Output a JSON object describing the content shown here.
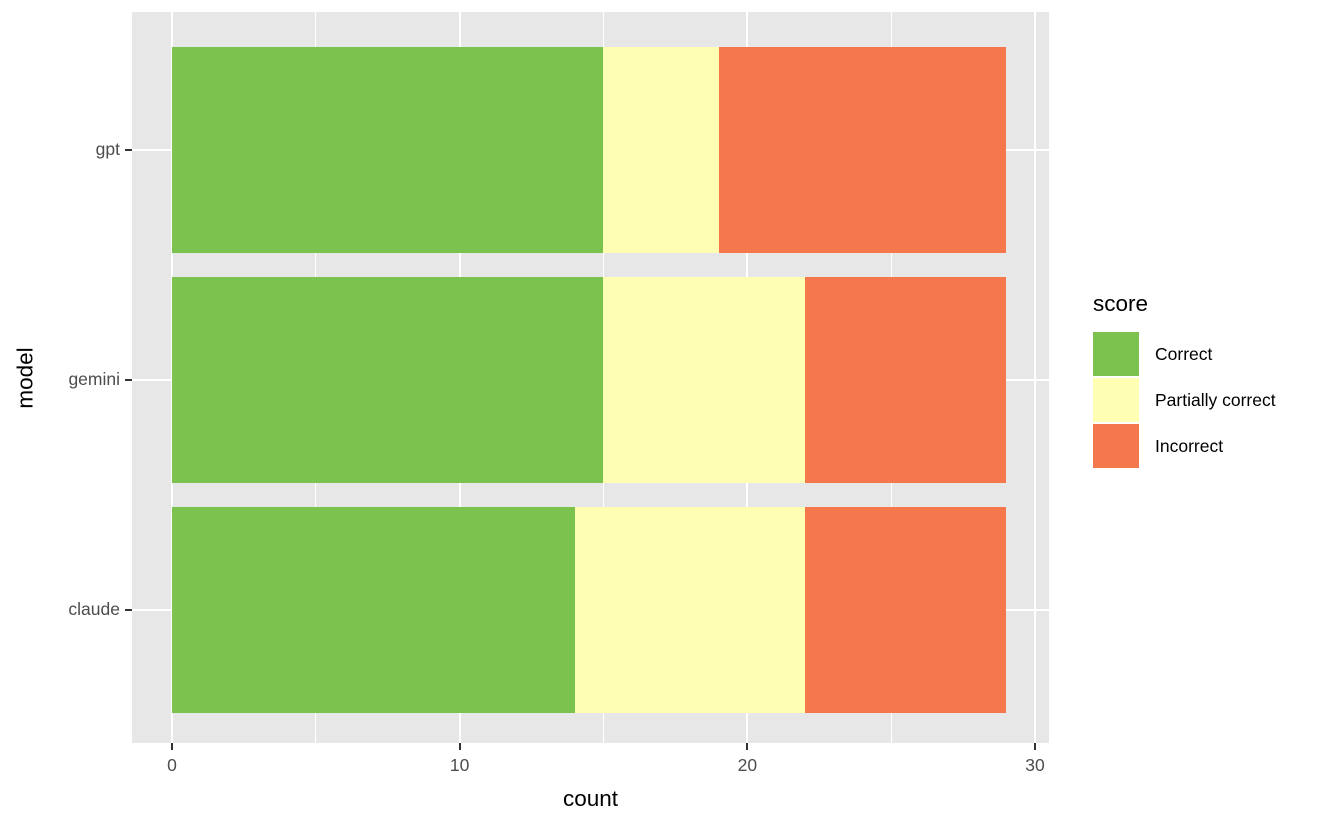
{
  "chart_data": {
    "type": "bar",
    "orientation": "horizontal",
    "stacked": true,
    "title": "",
    "xlabel": "count",
    "ylabel": "model",
    "categories": [
      "gpt",
      "gemini",
      "claude"
    ],
    "series": [
      {
        "name": "Correct",
        "color": "#7CC24E",
        "values": [
          15,
          15,
          14
        ]
      },
      {
        "name": "Partially correct",
        "color": "#FFFFB3",
        "values": [
          4,
          7,
          8
        ]
      },
      {
        "name": "Incorrect",
        "color": "#F4784B",
        "values": [
          10,
          7,
          7
        ]
      }
    ],
    "totals": [
      29,
      29,
      29
    ],
    "xlim": [
      0,
      30
    ],
    "x_ticks": [
      0,
      10,
      20,
      30
    ],
    "x_tick_labels": [
      "0",
      "10",
      "20",
      "30"
    ],
    "x_minor_ticks": [
      5,
      15,
      25
    ],
    "y_tick_labels": [
      "gpt",
      "gemini",
      "claude"
    ],
    "legend_title": "score",
    "legend_position": "right",
    "grid": true,
    "style": {
      "panel_background": "#E7E7E7",
      "grid_color": "#FFFFFF",
      "tick_mark_color": "#333333",
      "axis_text_color": "#4D4D4D",
      "axis_title_color": "#000000",
      "figure_background": "#FFFFFF"
    }
  }
}
